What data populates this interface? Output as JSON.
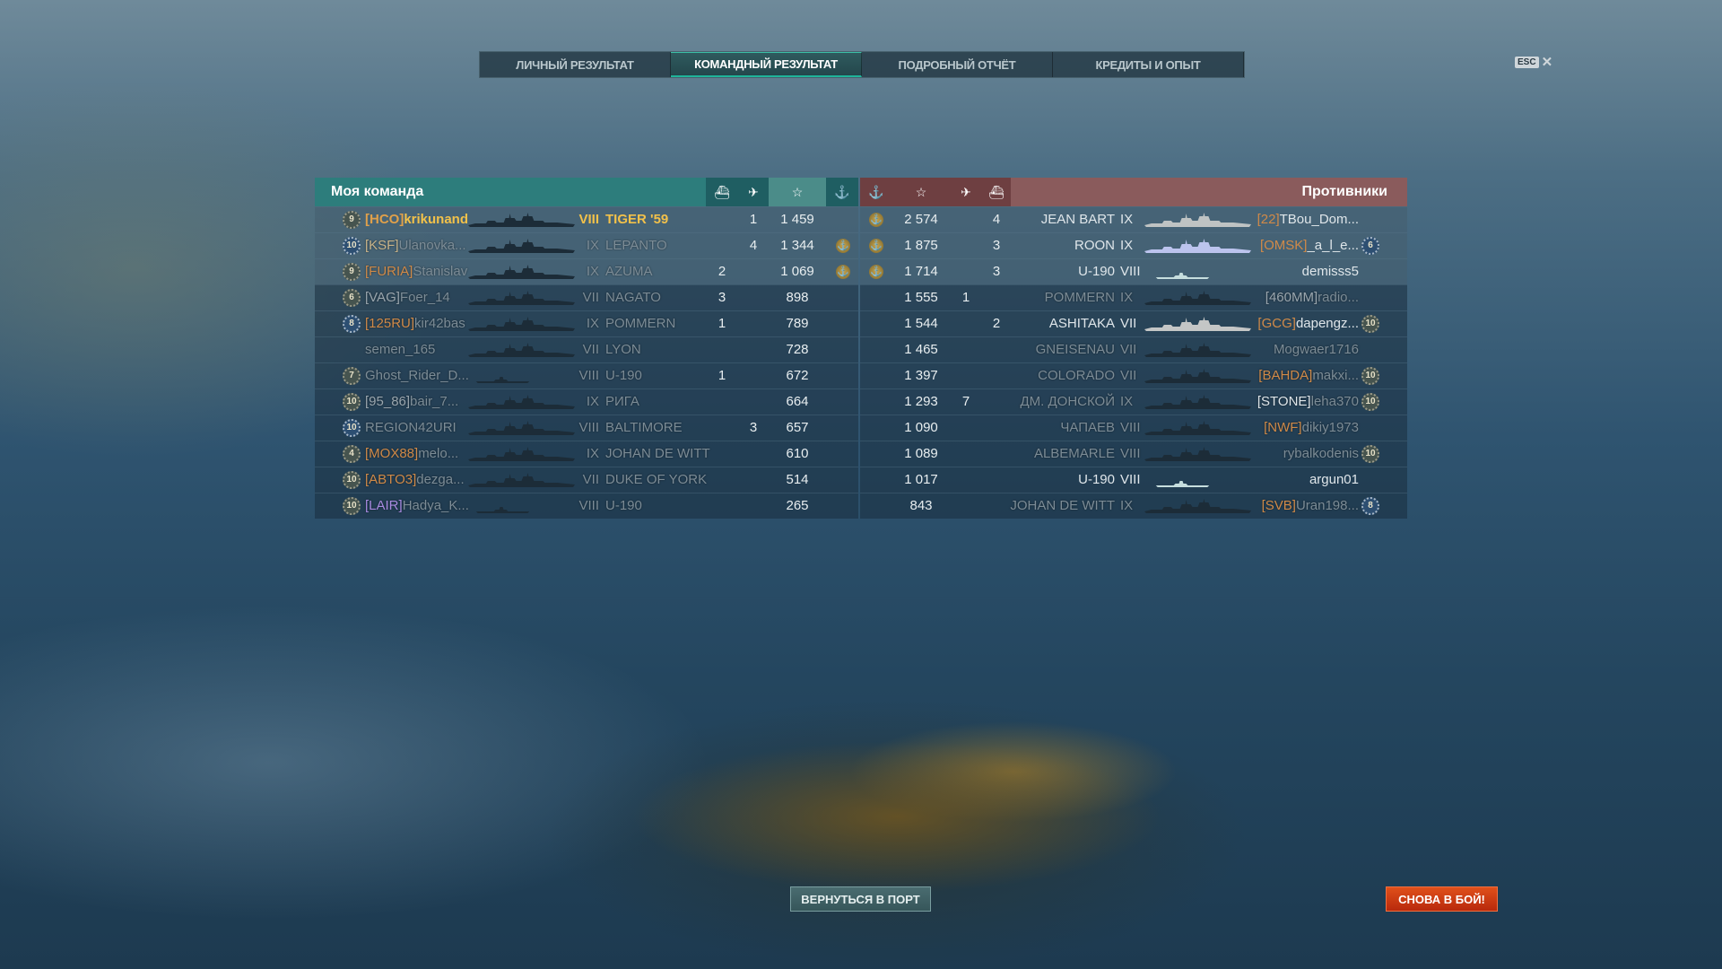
{
  "tabs": [
    {
      "label": "ЛИЧНЫЙ РЕЗУЛЬТАТ",
      "active": false
    },
    {
      "label": "КОМАНДНЫЙ РЕЗУЛЬТАТ",
      "active": true
    },
    {
      "label": "ПОДРОБНЫЙ ОТЧЁТ",
      "active": false
    },
    {
      "label": "КРЕДИТЫ И ОПЫТ",
      "active": false
    }
  ],
  "esc": {
    "key": "ESC",
    "close": "✕"
  },
  "my_team": {
    "title": "Моя команда",
    "header_icons": [
      "ships-destroyed-icon",
      "planes-destroyed-icon",
      "star-icon",
      "anchor-icon"
    ],
    "rows": [
      {
        "rank": "9",
        "rank_style": "gray",
        "clan": "[HCO]",
        "clan_color": "#d8914a",
        "name": "krikunand",
        "tier": "VIII",
        "ship": "TIGER '59",
        "ships": "",
        "planes": "1",
        "score": "1 459",
        "anchor": false,
        "me": true,
        "alive": true
      },
      {
        "rank": "10",
        "rank_style": "blue",
        "clan": "[KSF]",
        "clan_color": "#c9b48a",
        "name": "Ulanovka...",
        "tier": "IX",
        "ship": "LEPANTO",
        "ships": "",
        "planes": "4",
        "score": "1 344",
        "anchor": true,
        "alive": false
      },
      {
        "rank": "9",
        "rank_style": "gray",
        "clan": "[FURIA]",
        "clan_color": "#d08a48",
        "name": "Stanislav",
        "tier": "IX",
        "ship": "AZUMA",
        "ships": "2",
        "planes": "",
        "score": "1 069",
        "anchor": true,
        "alive": false
      },
      {
        "rank": "6",
        "rank_style": "gray",
        "clan": "[VAG]",
        "clan_color": "#9aa6ae",
        "name": "Foer_14",
        "tier": "VII",
        "ship": "NAGATO",
        "ships": "3",
        "planes": "",
        "score": "898",
        "anchor": false,
        "alive": false
      },
      {
        "rank": "8",
        "rank_style": "blue",
        "clan": "[125RU]",
        "clan_color": "#d08a48",
        "name": "kir42bas",
        "tier": "IX",
        "ship": "POMMERN",
        "ships": "1",
        "planes": "",
        "score": "789",
        "anchor": false,
        "alive": false
      },
      {
        "rank": "",
        "rank_style": "",
        "clan": "",
        "clan_color": "",
        "name": "semen_165",
        "tier": "VII",
        "ship": "LYON",
        "ships": "",
        "planes": "",
        "score": "728",
        "anchor": false,
        "alive": false
      },
      {
        "rank": "7",
        "rank_style": "gray",
        "clan": "",
        "clan_color": "",
        "name": "Ghost_Rider_D...",
        "tier": "VIII",
        "ship": "U-190",
        "ships": "1",
        "planes": "",
        "score": "672",
        "anchor": false,
        "alive": false,
        "sub": true
      },
      {
        "rank": "10",
        "rank_style": "gray",
        "clan": "[95_86]",
        "clan_color": "#9aa6ae",
        "name": "bair_7...",
        "tier": "IX",
        "ship": "РИГА",
        "ships": "",
        "planes": "",
        "score": "664",
        "anchor": false,
        "alive": false
      },
      {
        "rank": "10",
        "rank_style": "blue",
        "clan": "",
        "clan_color": "",
        "name": "REGION42URI",
        "tier": "VIII",
        "ship": "BALTIMORE",
        "ships": "",
        "planes": "3",
        "score": "657",
        "anchor": false,
        "alive": false
      },
      {
        "rank": "4",
        "rank_style": "gray",
        "clan": "[MOX88]",
        "clan_color": "#d08a48",
        "name": "melo...",
        "tier": "IX",
        "ship": "JOHAN DE WITT",
        "ships": "",
        "planes": "",
        "score": "610",
        "anchor": false,
        "alive": false
      },
      {
        "rank": "10",
        "rank_style": "gray",
        "clan": "[ABTO3]",
        "clan_color": "#d08a48",
        "name": "dezga...",
        "tier": "VII",
        "ship": "DUKE OF YORK",
        "ships": "",
        "planes": "",
        "score": "514",
        "anchor": false,
        "alive": false
      },
      {
        "rank": "10",
        "rank_style": "gray",
        "clan": "[LAIR]",
        "clan_color": "#a88ae0",
        "name": "Hadya_K...",
        "tier": "VIII",
        "ship": "U-190",
        "ships": "",
        "planes": "",
        "score": "265",
        "anchor": false,
        "alive": false,
        "sub": true
      }
    ]
  },
  "enemy_team": {
    "title": "Противники",
    "header_icons": [
      "anchor-icon",
      "star-icon",
      "planes-destroyed-icon",
      "ships-destroyed-icon"
    ],
    "rows": [
      {
        "anchor": true,
        "score": "2 574",
        "planes": "",
        "ships": "4",
        "ship": "JEAN BART",
        "tier": "IX",
        "clan": "[22]",
        "clan_color": "#d08a48",
        "name": "TBou_Dom...",
        "rank": "",
        "rank_style": "",
        "alive": true,
        "ship_color": "#bfc3c3"
      },
      {
        "anchor": true,
        "score": "1 875",
        "planes": "",
        "ships": "3",
        "ship": "ROON",
        "tier": "IX",
        "clan": "[OMSK]",
        "clan_color": "#d08a48",
        "name": "_a_l_e...",
        "rank": "6",
        "rank_style": "blue",
        "alive": true,
        "ship_color": "#bcc4ee"
      },
      {
        "anchor": true,
        "score": "1 714",
        "planes": "",
        "ships": "3",
        "ship": "U-190",
        "tier": "VIII",
        "clan": "",
        "clan_color": "",
        "name": "demisss5",
        "rank": "",
        "rank_style": "",
        "alive": true,
        "sub": true,
        "ship_color": "#c6dede"
      },
      {
        "anchor": false,
        "score": "1 555",
        "planes": "1",
        "ships": "",
        "ship": "POMMERN",
        "tier": "IX",
        "clan": "[460MM]",
        "clan_color": "#9aa6ae",
        "name": "radio...",
        "rank": "",
        "rank_style": "",
        "alive": false
      },
      {
        "anchor": false,
        "score": "1 544",
        "planes": "",
        "ships": "2",
        "ship": "ASHITAKA",
        "tier": "VII",
        "clan": "[GCG]",
        "clan_color": "#d08a48",
        "name": "dapengz...",
        "rank": "10",
        "rank_style": "gray",
        "alive": true,
        "ship_color": "#c4c6c6"
      },
      {
        "anchor": false,
        "score": "1 465",
        "planes": "",
        "ships": "",
        "ship": "GNEISENAU",
        "tier": "VII",
        "clan": "",
        "clan_color": "",
        "name": "Mogwaer1716",
        "rank": "",
        "rank_style": "",
        "alive": false
      },
      {
        "anchor": false,
        "score": "1 397",
        "planes": "",
        "ships": "",
        "ship": "COLORADO",
        "tier": "VII",
        "clan": "[BAHDA]",
        "clan_color": "#d08a48",
        "name": "makxi...",
        "rank": "10",
        "rank_style": "gray",
        "alive": false
      },
      {
        "anchor": false,
        "score": "1 293",
        "planes": "7",
        "ships": "",
        "ship": "ДМ. ДОНСКОЙ",
        "tier": "IX",
        "clan": "[STONE]",
        "clan_color": "#dfe6ea",
        "name": "leha370",
        "rank": "10",
        "rank_style": "gray",
        "alive": false
      },
      {
        "anchor": false,
        "score": "1 090",
        "planes": "",
        "ships": "",
        "ship": "ЧАПАЕВ",
        "tier": "VIII",
        "clan": "[NWF]",
        "clan_color": "#d08a48",
        "name": "dikiy1973",
        "rank": "",
        "rank_style": "",
        "alive": false
      },
      {
        "anchor": false,
        "score": "1 089",
        "planes": "",
        "ships": "",
        "ship": "ALBEMARLE",
        "tier": "VIII",
        "clan": "",
        "clan_color": "",
        "name": "rybalkodenis",
        "rank": "10",
        "rank_style": "gray",
        "alive": false
      },
      {
        "anchor": false,
        "score": "1 017",
        "planes": "",
        "ships": "",
        "ship": "U-190",
        "tier": "VIII",
        "clan": "",
        "clan_color": "",
        "name": "argun01",
        "rank": "",
        "rank_style": "",
        "alive": true,
        "sub": true,
        "ship_color": "#c6dede"
      },
      {
        "anchor": false,
        "score": "843",
        "planes": "",
        "ships": "",
        "ship": "JOHAN DE WITT",
        "tier": "IX",
        "clan": "[SVB]",
        "clan_color": "#d08a48",
        "name": "Uran198...",
        "rank": "8",
        "rank_style": "blue",
        "alive": false
      }
    ]
  },
  "buttons": {
    "back_to_port": "ВЕРНУТЬСЯ В ПОРТ",
    "battle_again": "СНОВА В БОЙ!"
  },
  "colors": {
    "my_team_header": "#2d7d7c",
    "enemy_header": "#8a5b5c",
    "player_highlight": "#f2c14a",
    "battle_button": "#d23d12"
  }
}
